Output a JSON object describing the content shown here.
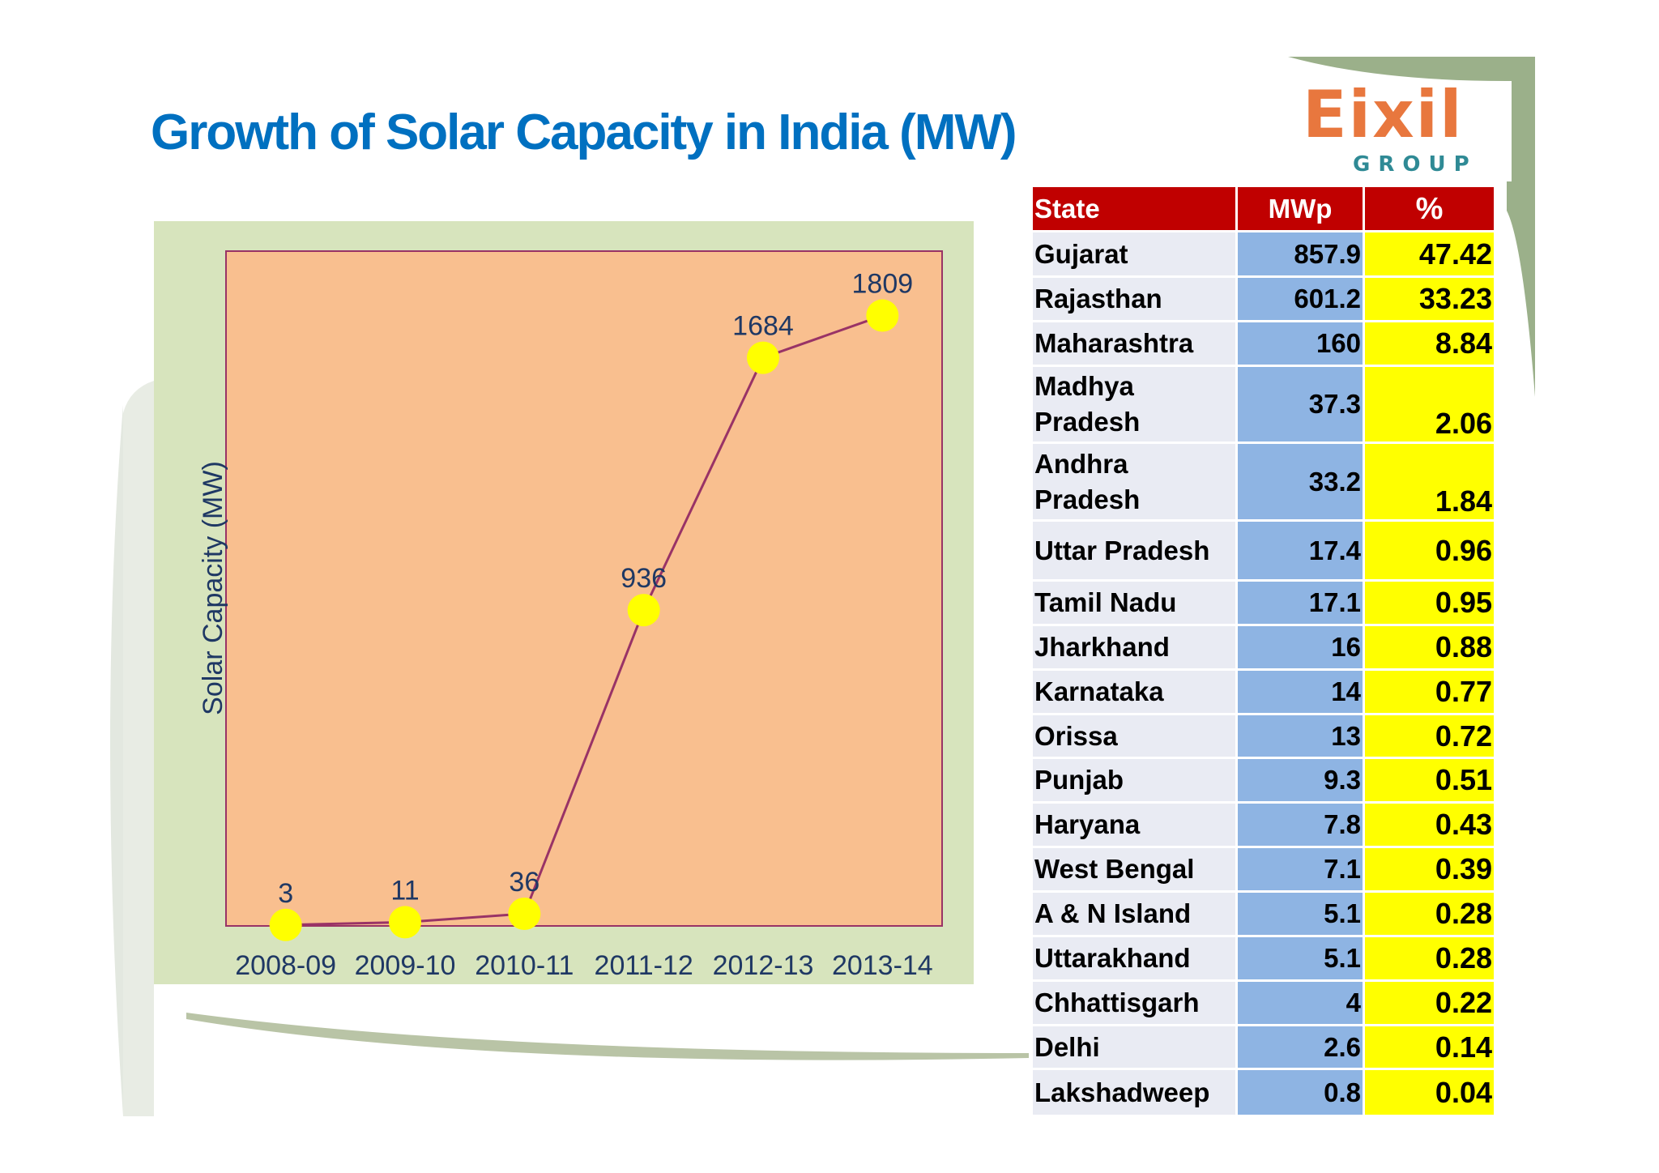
{
  "title": "Growth of Solar Capacity in India (MW)",
  "logo": {
    "main": "Eixil",
    "sub": "GROUP"
  },
  "colors": {
    "title": "#0070c0",
    "plot_bg": "#f9bf8f",
    "panel_bg": "#d7e4bd",
    "line": "#993366",
    "marker": "#ffff00",
    "header": "#c00000",
    "mwp_col": "#8eb4e3",
    "pct_col": "#ffff00",
    "state_col": "#e9ebf3"
  },
  "chart_data": {
    "type": "line",
    "title": "",
    "xlabel": "",
    "ylabel": "Solar Capacity (MW)",
    "categories": [
      "2008-09",
      "2009-10",
      "2010-11",
      "2011-12",
      "2012-13",
      "2013-14"
    ],
    "values": [
      3,
      11,
      36,
      936,
      1684,
      1809
    ],
    "data_labels": [
      "3",
      "11",
      "36",
      "936",
      "1684",
      "1809"
    ],
    "ylim": [
      0,
      2000
    ],
    "grid": false,
    "legend": "none"
  },
  "table": {
    "headers": [
      "State",
      "MWp",
      "%"
    ],
    "rows": [
      {
        "state": "Gujarat",
        "mwp": "857.9",
        "pct": "47.42"
      },
      {
        "state": "Rajasthan",
        "mwp": "601.2",
        "pct": "33.23"
      },
      {
        "state": "Maharashtra",
        "mwp": "160",
        "pct": "8.84"
      },
      {
        "state": "Madhya Pradesh",
        "mwp": "37.3",
        "pct": "2.06"
      },
      {
        "state": "Andhra Pradesh",
        "mwp": "33.2",
        "pct": "1.84"
      },
      {
        "state": "Uttar Pradesh",
        "mwp": "17.4",
        "pct": "0.96"
      },
      {
        "state": "Tamil Nadu",
        "mwp": "17.1",
        "pct": "0.95"
      },
      {
        "state": "Jharkhand",
        "mwp": "16",
        "pct": "0.88"
      },
      {
        "state": "Karnataka",
        "mwp": "14",
        "pct": "0.77"
      },
      {
        "state": "Orissa",
        "mwp": "13",
        "pct": "0.72"
      },
      {
        "state": "Punjab",
        "mwp": "9.3",
        "pct": "0.51"
      },
      {
        "state": "Haryana",
        "mwp": "7.8",
        "pct": "0.43"
      },
      {
        "state": "West Bengal",
        "mwp": "7.1",
        "pct": "0.39"
      },
      {
        "state": "A & N Island",
        "mwp": "5.1",
        "pct": "0.28"
      },
      {
        "state": "Uttarakhand",
        "mwp": "5.1",
        "pct": "0.28"
      },
      {
        "state": "Chhattisgarh",
        "mwp": "4",
        "pct": "0.22"
      },
      {
        "state": "Delhi",
        "mwp": "2.6",
        "pct": "0.14"
      },
      {
        "state": "Lakshadweep",
        "mwp": "0.8",
        "pct": "0.04"
      }
    ]
  }
}
